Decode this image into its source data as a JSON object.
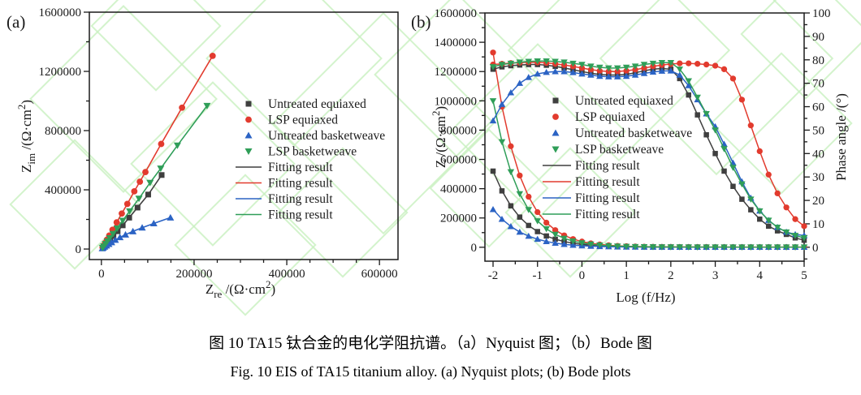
{
  "colors": {
    "black": "#3f3f3f",
    "red": "#e23b2e",
    "blue": "#2b63c4",
    "green": "#2f9e58",
    "frame": "#1a1a1a",
    "watermark": "#c8f0bf"
  },
  "caption": {
    "line1": "图 10 TA15 钛合金的电化学阻抗谱。（a）Nyquist 图；（b）Bode 图",
    "line2": "Fig. 10 EIS of TA15 titanium alloy. (a) Nyquist plots; (b) Bode plots"
  },
  "legend_labels": [
    "Untreated equiaxed",
    "LSP equiaxed",
    "Untreated basketweave",
    "LSP basketweave",
    "Fitting result",
    "Fitting result",
    "Fitting result",
    "Fitting result"
  ],
  "chart_data": [
    {
      "id": "nyquist",
      "type": "scatter",
      "panel_label": "(a)",
      "xlabel_parts": [
        [
          "t",
          "Z"
        ],
        [
          "sub",
          "re"
        ],
        [
          "t",
          " /(Ω·cm"
        ],
        [
          "sup",
          "2"
        ],
        [
          "t",
          ")"
        ]
      ],
      "ylabel_parts": [
        [
          "t",
          "Z"
        ],
        [
          "sub",
          "im"
        ],
        [
          "t",
          " /(Ω·cm"
        ],
        [
          "sup",
          "2"
        ],
        [
          "t",
          ")"
        ]
      ],
      "xlim": [
        -26000,
        640000
      ],
      "ylim": [
        -71000,
        1600000
      ],
      "xticks": [
        0,
        200000,
        400000,
        600000
      ],
      "yticks": [
        0,
        400000,
        800000,
        1200000,
        1600000
      ],
      "x_minor_step": 50000,
      "y_minor_step": 200000,
      "grid": false,
      "legend_position": "middle-right",
      "series": [
        {
          "name": "Untreated equiaxed",
          "color": "black",
          "marker": "square",
          "points": [
            [
              3000,
              9000
            ],
            [
              6000,
              19000
            ],
            [
              10000,
              31000
            ],
            [
              14000,
              46000
            ],
            [
              19000,
              64000
            ],
            [
              26000,
              88000
            ],
            [
              35000,
              120000
            ],
            [
              46000,
              160000
            ],
            [
              60000,
              212000
            ],
            [
              78000,
              280000
            ],
            [
              101000,
              368000
            ],
            [
              130000,
              500000
            ]
          ]
        },
        {
          "name": "LSP equiaxed",
          "color": "red",
          "marker": "circle",
          "points": [
            [
              2500,
              11000
            ],
            [
              5000,
              24000
            ],
            [
              8000,
              41000
            ],
            [
              12000,
              63000
            ],
            [
              17000,
              91000
            ],
            [
              24000,
              130000
            ],
            [
              33000,
              180000
            ],
            [
              44000,
              240000
            ],
            [
              56000,
              305000
            ],
            [
              71000,
              390000
            ],
            [
              83000,
              455000
            ],
            [
              95000,
              520000
            ],
            [
              129000,
              710000
            ],
            [
              174000,
              955000
            ],
            [
              240000,
              1305000
            ]
          ]
        },
        {
          "name": "Untreated basketweave",
          "color": "blue",
          "marker": "triangle-up",
          "points": [
            [
              2000,
              4000
            ],
            [
              4000,
              9000
            ],
            [
              7000,
              15000
            ],
            [
              11000,
              23000
            ],
            [
              16000,
              33000
            ],
            [
              22000,
              45000
            ],
            [
              30000,
              61000
            ],
            [
              40000,
              79000
            ],
            [
              52000,
              97000
            ],
            [
              68000,
              119000
            ],
            [
              88000,
              144000
            ],
            [
              113000,
              173000
            ],
            [
              149000,
              212000
            ]
          ]
        },
        {
          "name": "LSP basketweave",
          "color": "green",
          "marker": "triangle-down",
          "points": [
            [
              2500,
              9000
            ],
            [
              5000,
              19000
            ],
            [
              9000,
              35000
            ],
            [
              13000,
              53000
            ],
            [
              18000,
              74000
            ],
            [
              25000,
              103000
            ],
            [
              34000,
              140000
            ],
            [
              46000,
              192000
            ],
            [
              61000,
              256000
            ],
            [
              81000,
              341000
            ],
            [
              105000,
              448000
            ],
            [
              128000,
              545000
            ],
            [
              164000,
              700000
            ],
            [
              228000,
              968000
            ]
          ]
        }
      ],
      "fit_series": [
        {
          "name": "Fitting result",
          "color": "black"
        },
        {
          "name": "Fitting result",
          "color": "red"
        },
        {
          "name": "Fitting result",
          "color": "blue"
        },
        {
          "name": "Fitting result",
          "color": "green"
        }
      ]
    },
    {
      "id": "bode",
      "type": "line",
      "panel_label": "(b)",
      "xlabel": "Log (f/Hz)",
      "ylabel_left_parts": [
        [
          "t",
          "Z /(Ω·cm"
        ],
        [
          "sup",
          "2"
        ],
        [
          "t",
          ")"
        ]
      ],
      "ylabel_right": "Phase angle /(°)",
      "xlim": [
        -2.183,
        5.0
      ],
      "ylim_left": [
        -95000,
        1600000
      ],
      "ylim_right": [
        -5.94,
        100
      ],
      "xticks": [
        -2,
        -1,
        0,
        1,
        2,
        3,
        4,
        5
      ],
      "yticks_left": [
        0,
        200000,
        400000,
        600000,
        800000,
        1000000,
        1200000,
        1400000,
        1600000
      ],
      "yticks_right": [
        0,
        10,
        20,
        30,
        40,
        50,
        60,
        70,
        80,
        90,
        100
      ],
      "x_minor_step": 0.5,
      "y_left_minor_step": 100000,
      "y_right_minor_step": 5,
      "grid": false,
      "legend_position": "middle-left",
      "x": [
        -2,
        -1.8,
        -1.6,
        -1.4,
        -1.2,
        -1,
        -0.8,
        -0.6,
        -0.4,
        -0.2,
        0,
        0.2,
        0.4,
        0.6,
        0.8,
        1,
        1.2,
        1.4,
        1.6,
        1.8,
        2,
        2.2,
        2.4,
        2.6,
        2.8,
        3,
        3.2,
        3.4,
        3.6,
        3.8,
        4,
        4.2,
        4.4,
        4.6,
        4.8,
        5
      ],
      "series": [
        {
          "name": "Untreated equiaxed",
          "quantity": "impedance",
          "axis": "left",
          "color": "black",
          "marker": "square",
          "values": [
            520000,
            385000,
            283000,
            206000,
            149000,
            107000,
            77000,
            55000,
            39000,
            27500,
            19500,
            14000,
            10000,
            7300,
            5400,
            4100,
            3100,
            2500,
            2000,
            1700,
            1500,
            1350,
            1250,
            1150,
            1100,
            1050,
            1010,
            980,
            950,
            930,
            910,
            900,
            890,
            880,
            870,
            860
          ]
        },
        {
          "name": "LSP equiaxed",
          "quantity": "impedance",
          "axis": "left",
          "color": "red",
          "marker": "circle",
          "values": [
            1330000,
            960000,
            690000,
            490000,
            345000,
            240000,
            168000,
            117000,
            81000,
            56000,
            39000,
            27000,
            19000,
            13500,
            9600,
            7000,
            5200,
            4000,
            3200,
            2600,
            2200,
            1950,
            1750,
            1600,
            1500,
            1430,
            1380,
            1340,
            1300,
            1270,
            1250,
            1230,
            1210,
            1200,
            1190,
            1180
          ]
        },
        {
          "name": "Untreated basketweave",
          "quantity": "impedance",
          "axis": "left",
          "color": "blue",
          "marker": "triangle-up",
          "values": [
            258000,
            192000,
            142000,
            104000,
            76000,
            55000,
            39500,
            28000,
            20000,
            14200,
            10100,
            7200,
            5200,
            3800,
            2800,
            2100,
            1700,
            1400,
            1200,
            1050,
            950,
            880,
            820,
            780,
            750,
            720,
            700,
            690,
            680,
            670,
            660,
            650,
            645,
            640,
            638,
            636
          ]
        },
        {
          "name": "LSP basketweave",
          "quantity": "impedance",
          "axis": "left",
          "color": "green",
          "marker": "triangle-down",
          "values": [
            1000000,
            720000,
            515000,
            365000,
            257000,
            180000,
            126000,
            88000,
            61000,
            42000,
            29500,
            21000,
            14800,
            10500,
            7600,
            5600,
            4200,
            3200,
            2600,
            2100,
            1800,
            1600,
            1450,
            1350,
            1270,
            1210,
            1170,
            1130,
            1100,
            1080,
            1060,
            1050,
            1040,
            1030,
            1020,
            1010
          ]
        },
        {
          "name": "Untreated equiaxed",
          "quantity": "phase",
          "axis": "right",
          "color": "black",
          "marker": "square",
          "values": [
            76,
            77,
            77.5,
            77.8,
            78,
            78,
            77.7,
            77.2,
            76.5,
            75.8,
            75,
            74.3,
            73.8,
            73.5,
            73.5,
            73.8,
            74.5,
            75.3,
            76,
            76.3,
            76,
            72,
            65,
            56.5,
            48,
            40,
            32.5,
            26,
            20.5,
            16,
            12,
            9,
            7,
            5.5,
            4,
            3
          ]
        },
        {
          "name": "LSP equiaxed",
          "quantity": "phase",
          "axis": "right",
          "color": "red",
          "marker": "circle",
          "values": [
            78,
            78.3,
            78.6,
            78.8,
            79,
            78.9,
            78.7,
            78.3,
            77.8,
            77.2,
            76.5,
            75.8,
            75.3,
            75,
            75,
            75.3,
            75.8,
            76.5,
            77.2,
            77.8,
            78.2,
            78.5,
            78.5,
            78.3,
            78,
            77.5,
            76,
            72,
            63,
            52,
            41,
            31,
            23,
            17,
            12,
            9
          ]
        },
        {
          "name": "Untreated basketweave",
          "quantity": "phase",
          "axis": "right",
          "color": "blue",
          "marker": "triangle-up",
          "values": [
            54,
            61,
            66,
            70,
            72.5,
            74,
            74.7,
            75,
            75,
            74.6,
            74,
            73.5,
            73,
            72.8,
            72.8,
            73,
            73.5,
            74.2,
            74.8,
            75.2,
            75.3,
            73.5,
            69,
            63,
            57,
            51.5,
            44,
            36,
            28,
            21,
            15.5,
            11.5,
            8.5,
            6.5,
            5.5,
            5
          ]
        },
        {
          "name": "LSP basketweave",
          "quantity": "phase",
          "axis": "right",
          "color": "green",
          "marker": "triangle-down",
          "values": [
            77,
            78,
            78.5,
            79,
            79.3,
            79.5,
            79.5,
            79.3,
            79,
            78.5,
            78,
            77.3,
            76.8,
            76.5,
            76.5,
            76.8,
            77.3,
            78,
            78.5,
            78.8,
            78.8,
            76,
            71,
            64,
            57,
            50,
            42,
            34,
            27,
            20.5,
            15.5,
            11.5,
            8.5,
            6.5,
            5,
            4
          ]
        }
      ],
      "fit_series": [
        {
          "name": "Fitting result",
          "color": "black"
        },
        {
          "name": "Fitting result",
          "color": "red"
        },
        {
          "name": "Fitting result",
          "color": "blue"
        },
        {
          "name": "Fitting result",
          "color": "green"
        }
      ]
    }
  ]
}
